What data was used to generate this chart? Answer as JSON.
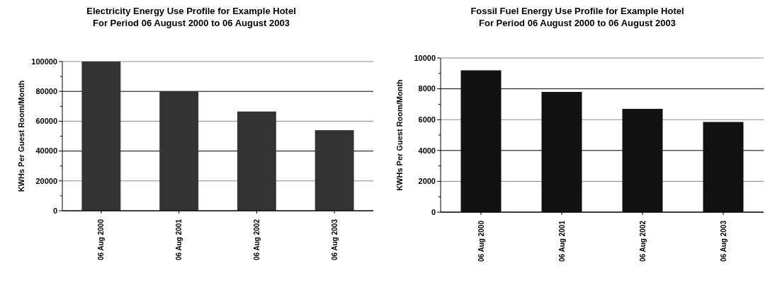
{
  "chart_data": [
    {
      "type": "bar",
      "title": "Electricity Energy Use Profile for Example Hotel",
      "subtitle": "For Period 06 August 2000 to 06 August 2003",
      "ylabel": "KWHs Per Guest Room/Month",
      "categories": [
        "06 Aug 2000",
        "06 Aug 2001",
        "06 Aug 2002",
        "06 Aug 2003"
      ],
      "values": [
        100000,
        80000,
        66500,
        54000
      ],
      "color": "#333333",
      "ylim": [
        0,
        100000
      ],
      "yticks": [
        0,
        {
          "value": 10000,
          "label": null
        },
        20000,
        {
          "value": 30000,
          "label": null
        },
        40000,
        {
          "value": 50000,
          "label": null
        },
        60000,
        {
          "value": 70000,
          "label": null
        },
        80000,
        {
          "value": 90000,
          "label": null
        },
        100000
      ],
      "grid": "y"
    },
    {
      "type": "bar",
      "title": "Fossil Fuel Energy Use Profile for Example Hotel",
      "subtitle": "For Period 06 August 2000 to 06 August 2003",
      "ylabel": "KWHs Per Guest Room/Month",
      "categories": [
        "06 Aug 2000",
        "06 Aug 2001",
        "06 Aug 2002",
        "06 Aug 2003"
      ],
      "values": [
        9200,
        7800,
        6700,
        5850
      ],
      "color": "#111111",
      "ylim": [
        0,
        10000
      ],
      "yticks": [
        0,
        {
          "value": 1000,
          "label": null
        },
        2000,
        {
          "value": 3000,
          "label": null
        },
        4000,
        {
          "value": 5000,
          "label": null
        },
        6000,
        {
          "value": 7000,
          "label": null
        },
        8000,
        {
          "value": 9000,
          "label": null
        },
        10000
      ],
      "grid": "y"
    }
  ]
}
